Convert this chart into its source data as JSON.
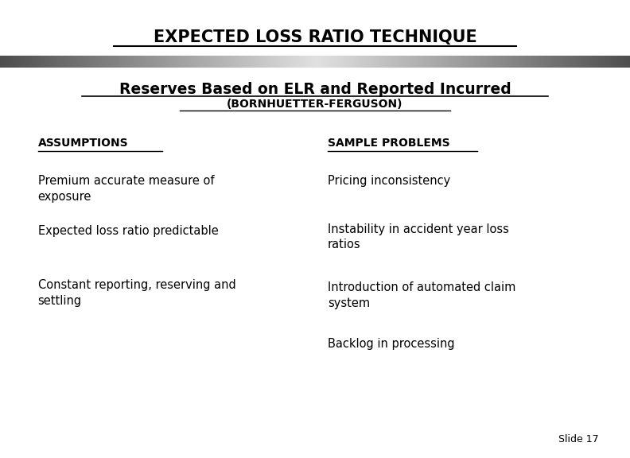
{
  "title": "EXPECTED LOSS RATIO TECHNIQUE",
  "subtitle1": "Reserves Based on ELR and Reported Incurred",
  "subtitle2": "(BORNHUETTER-FERGUSON)",
  "col1_header": "ASSUMPTIONS",
  "col2_header": "SAMPLE PROBLEMS",
  "col1_items": [
    "Premium accurate measure of\nexposure",
    "Expected loss ratio predictable",
    "Constant reporting, reserving and\nsettling"
  ],
  "col2_items": [
    "Pricing inconsistency",
    "Instability in accident year loss\nratios",
    "Introduction of automated claim\nsystem",
    "Backlog in processing"
  ],
  "slide_number": "Slide 17",
  "bg_color": "#ffffff",
  "text_color": "#000000"
}
